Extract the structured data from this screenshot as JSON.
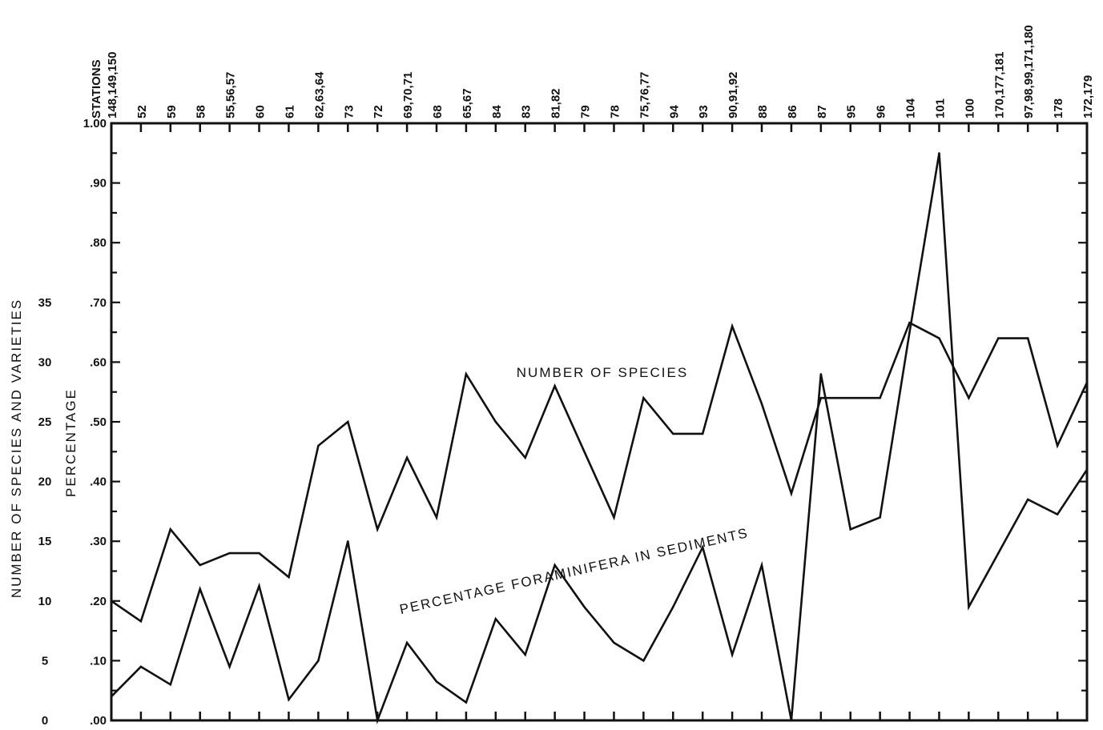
{
  "chart_data": {
    "type": "line",
    "x_axis_title": "STATIONS",
    "categories": [
      "148,149,150",
      "52",
      "59",
      "58",
      "55,56,57",
      "60",
      "61",
      "62,63,64",
      "73",
      "72",
      "69,70,71",
      "68",
      "65,67",
      "84",
      "83",
      "81,82",
      "79",
      "78",
      "75,76,77",
      "94",
      "93",
      "90,91,92",
      "88",
      "86",
      "87",
      "95",
      "96",
      "104",
      "101",
      "100",
      "170,177,181",
      "97,98,99,171,180",
      "178",
      "172,179"
    ],
    "y_left_label": "NUMBER OF SPECIES AND VARIETIES",
    "y_left_ticks": [
      "0",
      "5",
      "10",
      "15",
      "20",
      "25",
      "30",
      "35"
    ],
    "y_right_label": "PERCENTAGE",
    "y_right_ticks": [
      ".00",
      ".10",
      ".20",
      ".30",
      ".40",
      ".50",
      ".60",
      ".70",
      ".80",
      ".90",
      "1.00"
    ],
    "ylim_percentage": [
      0,
      1.0
    ],
    "ylim_species": [
      0,
      50
    ],
    "series": [
      {
        "name": "NUMBER OF SPECIES",
        "axis": "species",
        "values": [
          10,
          8.3,
          16,
          13,
          14,
          14,
          12,
          23,
          25,
          16,
          22,
          17,
          29,
          25,
          22,
          28,
          22.5,
          17,
          27,
          24,
          24,
          33,
          26.5,
          19,
          27,
          27,
          27,
          33.3,
          32,
          27,
          32,
          32,
          23,
          28.3
        ]
      },
      {
        "name": "PERCENTAGE FORAMINIFERA IN SEDIMENTS",
        "axis": "percentage",
        "values": [
          0.04,
          0.09,
          0.06,
          0.22,
          0.09,
          0.225,
          0.035,
          0.1,
          0.3,
          0.0,
          0.13,
          0.065,
          0.03,
          0.17,
          0.11,
          0.26,
          0.19,
          0.13,
          0.1,
          0.19,
          0.29,
          0.11,
          0.26,
          0.0,
          0.58,
          0.32,
          0.34,
          0.65,
          0.95,
          0.19,
          0.28,
          0.37,
          0.345,
          0.42
        ]
      }
    ],
    "grid": false,
    "legend": "inline labels"
  }
}
